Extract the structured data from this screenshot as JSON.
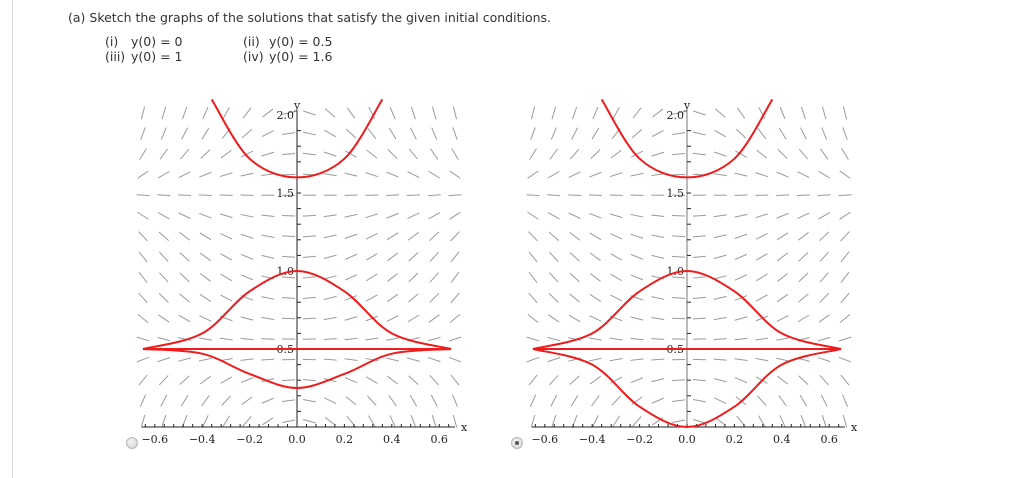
{
  "question": {
    "label": "(a) Sketch the graphs of the solutions that satisfy the given initial conditions.",
    "conditions": [
      {
        "num": "(i)",
        "expr": "y(0) = 0"
      },
      {
        "num": "(ii)",
        "expr": "y(0) = 0.5"
      },
      {
        "num": "(iii)",
        "expr": "y(0) = 1"
      },
      {
        "num": "(iv)",
        "expr": "y(0) = 1.6"
      }
    ]
  },
  "options": [
    {
      "id": "option-a",
      "selected": false
    },
    {
      "id": "option-b",
      "selected": true
    }
  ],
  "colors": {
    "curve": "#ee1c1c",
    "slope": "#9a9a9a",
    "axis": "#222222",
    "text": "#333333"
  },
  "chart_data": [
    {
      "type": "line",
      "title": "",
      "xlabel": "x",
      "ylabel": "y",
      "xlim": [
        -0.65,
        0.67
      ],
      "ylim": [
        0,
        2.0
      ],
      "x_ticks": [
        "-0.6",
        "-0.4",
        "-0.2",
        "0.0",
        "0.2",
        "0.4",
        "0.6"
      ],
      "y_ticks": [
        "0.5",
        "1.0",
        "1.5",
        "2.0"
      ],
      "grid": false,
      "slope_field": "dy/dx ∝ x(y-0.5)(y-1.5)",
      "series": [
        {
          "name": "y(0) = 0",
          "x": [
            -0.65,
            -0.4,
            -0.2,
            0,
            0.2,
            0.4,
            0.65
          ],
          "values": [
            0.5,
            0.47,
            0.34,
            0.25,
            0.34,
            0.47,
            0.5
          ]
        },
        {
          "name": "y(0) = 0.5",
          "x": [
            -0.65,
            0,
            0.65
          ],
          "values": [
            0.5,
            0.5,
            0.5
          ]
        },
        {
          "name": "y(0) = 1",
          "x": [
            -0.65,
            -0.4,
            -0.2,
            0,
            0.2,
            0.4,
            0.65
          ],
          "values": [
            0.5,
            0.6,
            0.87,
            1.0,
            0.87,
            0.6,
            0.5
          ]
        },
        {
          "name": "y(0) = 1.6",
          "x": [
            -0.36,
            -0.2,
            0,
            0.2,
            0.36
          ],
          "values": [
            2.1,
            1.72,
            1.6,
            1.72,
            2.1
          ]
        }
      ]
    },
    {
      "type": "line",
      "title": "",
      "xlabel": "x",
      "ylabel": "y",
      "xlim": [
        -0.65,
        0.67
      ],
      "ylim": [
        0,
        2.0
      ],
      "x_ticks": [
        "-0.6",
        "-0.4",
        "-0.2",
        "0.0",
        "0.2",
        "0.4",
        "0.6"
      ],
      "y_ticks": [
        "0.5",
        "1.0",
        "1.5",
        "2.0"
      ],
      "grid": false,
      "slope_field": "dy/dx ∝ x(y-0.5)(y-1.5)",
      "series": [
        {
          "name": "y(0) = 0",
          "x": [
            -0.65,
            -0.4,
            -0.2,
            0,
            0.2,
            0.4,
            0.65
          ],
          "values": [
            0.5,
            0.4,
            0.13,
            0.0,
            0.13,
            0.4,
            0.5
          ]
        },
        {
          "name": "y(0) = 0.5",
          "x": [
            -0.65,
            0,
            0.65
          ],
          "values": [
            0.5,
            0.5,
            0.5
          ]
        },
        {
          "name": "y(0) = 1",
          "x": [
            -0.65,
            -0.4,
            -0.2,
            0,
            0.2,
            0.4,
            0.65
          ],
          "values": [
            0.5,
            0.6,
            0.87,
            1.0,
            0.87,
            0.6,
            0.5
          ]
        },
        {
          "name": "y(0) = 1.6",
          "x": [
            -0.36,
            -0.2,
            0,
            0.2,
            0.36
          ],
          "values": [
            2.1,
            1.72,
            1.6,
            1.72,
            2.1
          ]
        }
      ]
    }
  ]
}
